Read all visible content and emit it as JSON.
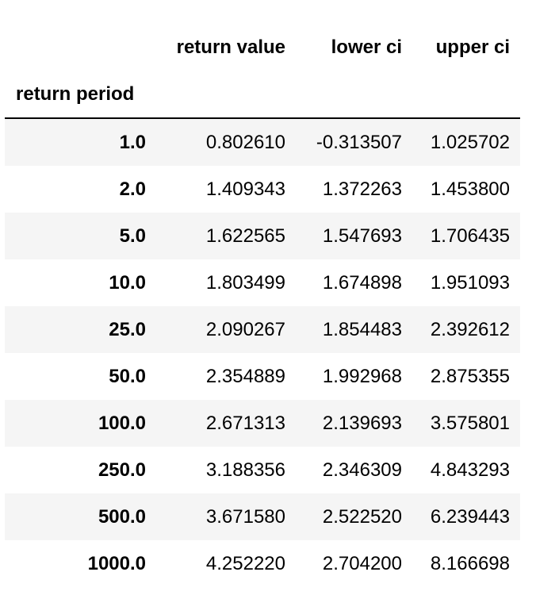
{
  "table": {
    "columns": [
      "return value",
      "lower ci",
      "upper ci"
    ],
    "index_name": "return period",
    "rows": [
      {
        "index": "1.0",
        "values": [
          "0.802610",
          "-0.313507",
          "1.025702"
        ]
      },
      {
        "index": "2.0",
        "values": [
          "1.409343",
          "1.372263",
          "1.453800"
        ]
      },
      {
        "index": "5.0",
        "values": [
          "1.622565",
          "1.547693",
          "1.706435"
        ]
      },
      {
        "index": "10.0",
        "values": [
          "1.803499",
          "1.674898",
          "1.951093"
        ]
      },
      {
        "index": "25.0",
        "values": [
          "2.090267",
          "1.854483",
          "2.392612"
        ]
      },
      {
        "index": "50.0",
        "values": [
          "2.354889",
          "1.992968",
          "2.875355"
        ]
      },
      {
        "index": "100.0",
        "values": [
          "2.671313",
          "2.139693",
          "3.575801"
        ]
      },
      {
        "index": "250.0",
        "values": [
          "3.188356",
          "2.346309",
          "4.843293"
        ]
      },
      {
        "index": "500.0",
        "values": [
          "3.671580",
          "2.522520",
          "6.239443"
        ]
      },
      {
        "index": "1000.0",
        "values": [
          "4.252220",
          "2.704200",
          "8.166698"
        ]
      }
    ],
    "row_stripe_color": "#f5f5f5",
    "header_rule_color": "#000000"
  }
}
